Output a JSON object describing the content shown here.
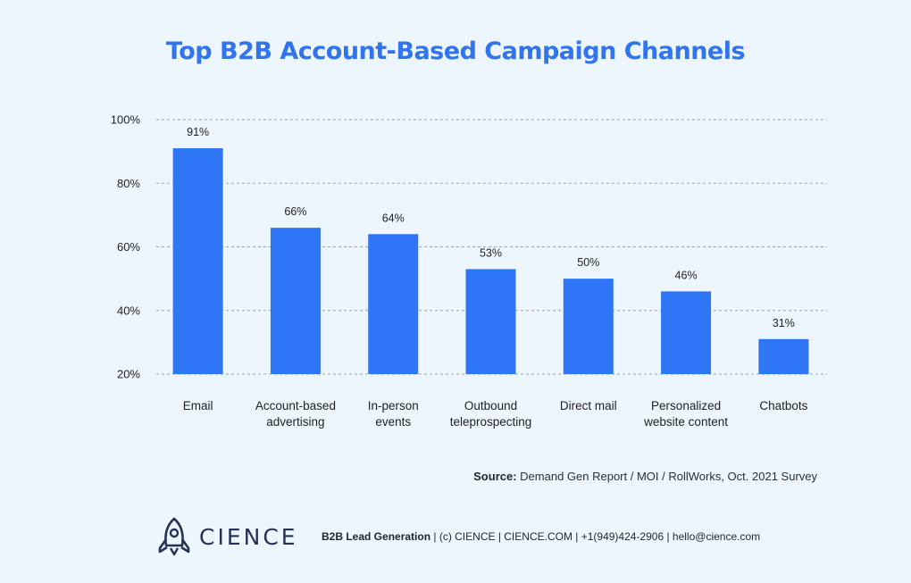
{
  "colors": {
    "bar": "#2f76f6",
    "title": "#3174f0",
    "grid": "#9aa7b8",
    "text": "#222222"
  },
  "chart_data": {
    "type": "bar",
    "title": "Top B2B Account-Based Campaign Channels",
    "categories": [
      [
        "Email"
      ],
      [
        "Account-based",
        "advertising"
      ],
      [
        "In-person",
        "events"
      ],
      [
        "Outbound",
        "teleprospecting"
      ],
      [
        "Direct mail"
      ],
      [
        "Personalized",
        "website content"
      ],
      [
        "Chatbots"
      ]
    ],
    "values": [
      91,
      66,
      64,
      53,
      50,
      46,
      31
    ],
    "data_labels": [
      "91%",
      "66%",
      "64%",
      "53%",
      "50%",
      "46%",
      "31%"
    ],
    "ylim": [
      20,
      100
    ],
    "yticks": [
      100,
      80,
      60,
      40,
      20
    ],
    "ytick_labels": [
      "100%",
      "80%",
      "60%",
      "40%",
      "20%"
    ],
    "grid": "dashed horizontal",
    "xlabel": "",
    "ylabel": ""
  },
  "source": {
    "label": "Source:",
    "text": "Demand Gen Report / MOI / RollWorks, Oct. 2021 Survey"
  },
  "footer": {
    "logo_text": "CIENCE",
    "tagline": "B2B Lead Generation",
    "details": " | (c) CIENCE | CIENCE.COM | +1(949)424-2906 | hello@cience.com"
  }
}
